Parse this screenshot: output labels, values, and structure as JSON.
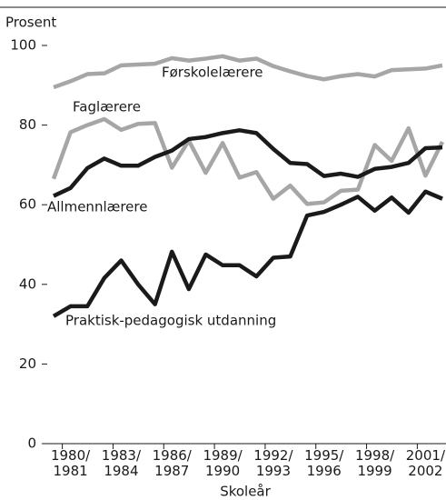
{
  "chart_data": {
    "type": "line",
    "y_label": "Prosent",
    "x_label": "Skoleår",
    "categories": [
      null,
      "1980/ 1981",
      null,
      null,
      "1983/ 1984",
      null,
      null,
      "1986/ 1987",
      null,
      null,
      "1989/ 1990",
      null,
      null,
      "1992/ 1993",
      null,
      null,
      "1995/ 1996",
      null,
      null,
      "1998/ 1999",
      null,
      null,
      "2001/ 2002",
      null
    ],
    "ylim": [
      0,
      100
    ],
    "yticks": [
      0,
      20,
      40,
      60,
      80,
      100
    ],
    "series": [
      {
        "name": "Førskolelærere",
        "color": "#a6a6a6",
        "values": [
          89.5,
          91,
          92.8,
          93,
          95,
          95.2,
          95.4,
          96.8,
          96.2,
          96.7,
          97.3,
          96.2,
          96.7,
          94.8,
          93.5,
          92.3,
          91.5,
          92.3,
          92.8,
          92.2,
          93.8,
          94,
          94.2,
          95
        ]
      },
      {
        "name": "Faglærere",
        "color": "#a6a6a6",
        "values": [
          66.5,
          78.2,
          80,
          81.5,
          78.8,
          80.3,
          80.5,
          69.3,
          76.1,
          68,
          75.5,
          66.8,
          68.2,
          61.5,
          64.8,
          60.2,
          60.6,
          63.5,
          63.8,
          75,
          71,
          79.2,
          67.3,
          75.8
        ]
      },
      {
        "name": "Allmennlærere",
        "color": "#1a1a1a",
        "values": [
          62.2,
          64.2,
          69.2,
          71.6,
          69.8,
          69.8,
          72,
          73.6,
          76.5,
          77,
          78,
          78.7,
          78,
          74,
          70.5,
          70.2,
          67.2,
          67.8,
          67,
          69,
          69.5,
          70.5,
          74.2,
          74.4
        ]
      },
      {
        "name": "Praktisk-pedagogisk utdanning",
        "color": "#1a1a1a",
        "values": [
          32,
          34.5,
          34.5,
          41.6,
          46,
          40,
          35,
          48.2,
          38.8,
          47.5,
          44.8,
          44.8,
          42,
          46.7,
          47,
          57.3,
          58.2,
          60,
          62,
          58.5,
          61.8,
          58,
          63.3,
          61.5
        ]
      }
    ]
  }
}
